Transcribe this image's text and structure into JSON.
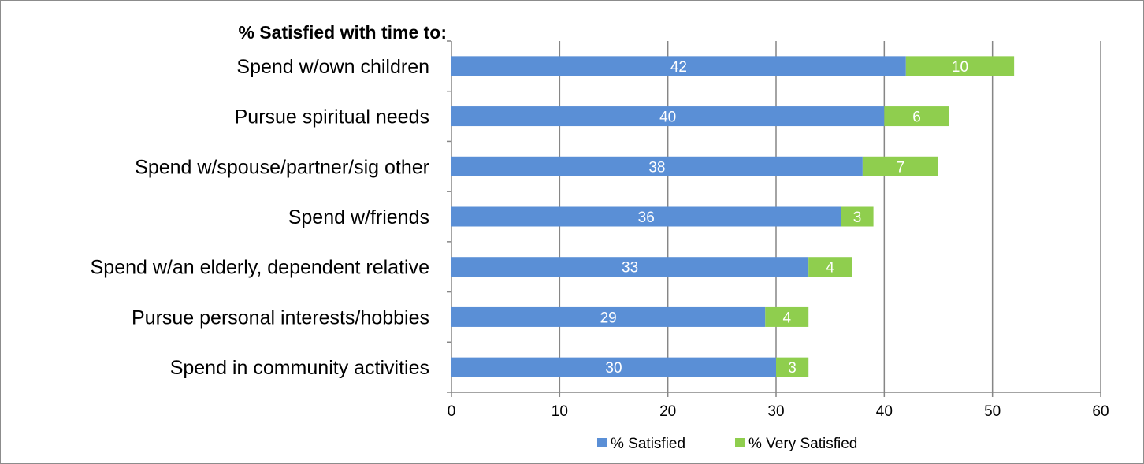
{
  "chart_data": {
    "type": "bar",
    "orientation": "horizontal",
    "stacked": true,
    "title": "% Satisfied with time to:",
    "categories": [
      "Spend w/own children",
      "Pursue spiritual needs",
      "Spend w/spouse/partner/sig other",
      "Spend w/friends",
      "Spend w/an elderly, dependent relative",
      "Pursue personal interests/hobbies",
      "Spend in community activities"
    ],
    "series": [
      {
        "name": "% Satisfied",
        "color": "#5a8fd6",
        "values": [
          42,
          40,
          38,
          36,
          33,
          29,
          30
        ]
      },
      {
        "name": "% Very Satisfied",
        "color": "#8fce4e",
        "values": [
          10,
          6,
          7,
          3,
          4,
          4,
          3
        ]
      }
    ],
    "xlim": [
      0,
      60
    ],
    "xticks": [
      "0",
      "10",
      "20",
      "30",
      "40",
      "50",
      "60"
    ],
    "grid": "vertical",
    "legend_position": "bottom"
  }
}
